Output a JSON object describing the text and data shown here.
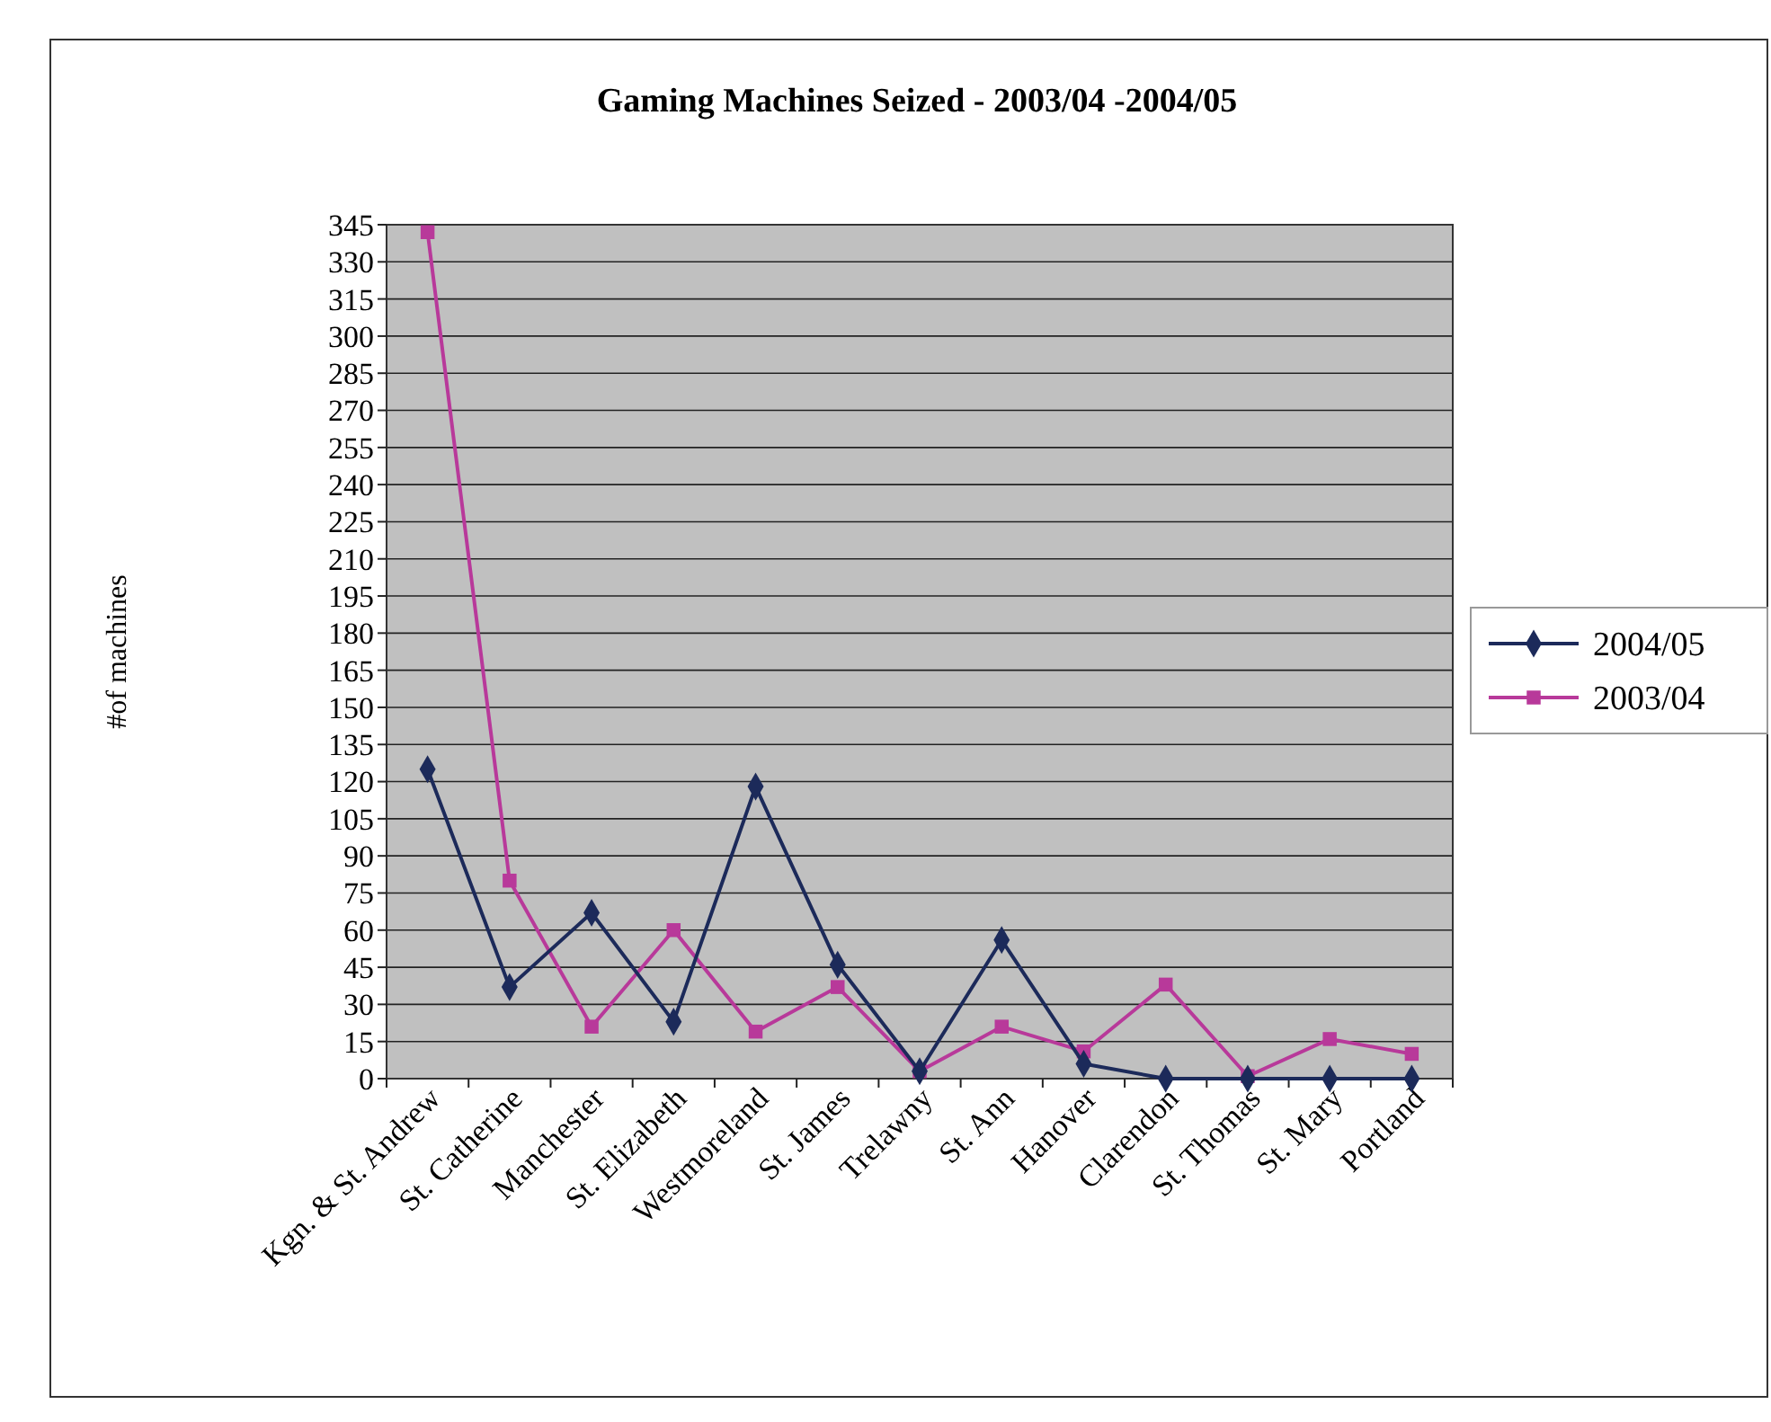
{
  "chart_data": {
    "type": "line",
    "title": "Gaming Machines Seized - 2003/04 -2004/05",
    "ylabel": "#of machines",
    "categories": [
      "Kgn. & St. Andrew",
      "St. Catherine",
      "Manchester",
      "St. Elizabeth",
      "Westmoreland",
      "St. James",
      "Trelawny",
      "St. Ann",
      "Hanover",
      "Clarendon",
      "St. Thomas",
      "St. Mary",
      "Portland"
    ],
    "series": [
      {
        "name": "2004/05",
        "color": "#1c2a5a",
        "marker": "diamond",
        "values": [
          125,
          37,
          67,
          23,
          118,
          46,
          3,
          56,
          6,
          0,
          0,
          0,
          0
        ]
      },
      {
        "name": "2003/04",
        "color": "#b8399a",
        "marker": "square",
        "values": [
          342,
          80,
          21,
          60,
          19,
          37,
          3,
          21,
          11,
          38,
          1,
          16,
          10
        ]
      }
    ],
    "ylim": [
      0,
      345
    ],
    "yticks": [
      0,
      15,
      30,
      45,
      60,
      75,
      90,
      105,
      120,
      135,
      150,
      165,
      180,
      195,
      210,
      225,
      240,
      255,
      270,
      285,
      300,
      315,
      330,
      345
    ],
    "grid": "y",
    "legend": "right"
  }
}
